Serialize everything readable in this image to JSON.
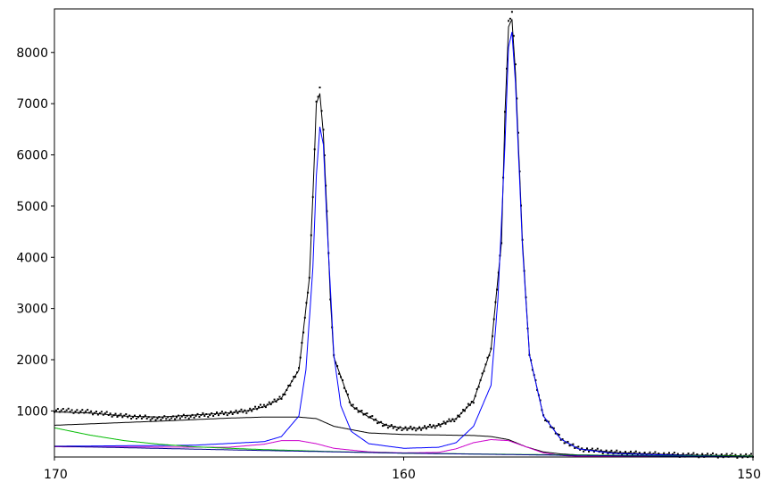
{
  "chart_data": {
    "type": "line",
    "title": "",
    "xlabel": "",
    "ylabel": "",
    "x_reversed": true,
    "xlim": [
      170,
      150
    ],
    "ylim": [
      100,
      8850
    ],
    "x_ticks": [
      170,
      160,
      150
    ],
    "x_tick_labels": [
      "170",
      "160",
      "150"
    ],
    "y_ticks": [
      1000,
      2000,
      3000,
      4000,
      5000,
      6000,
      7000,
      8000
    ],
    "y_tick_labels": [
      "1000",
      "2000",
      "3000",
      "4000",
      "5000",
      "6000",
      "7000",
      "8000"
    ],
    "grid": false,
    "legend": "none",
    "series": [
      {
        "kind": "points",
        "color": "#000000",
        "x": [
          170,
          169,
          168,
          167,
          166,
          165,
          164.5,
          164,
          163.5,
          163,
          162.7,
          162.6,
          162.5,
          162.4,
          162.3,
          162.2,
          162.1,
          162,
          161.5,
          161,
          160.5,
          160,
          159.5,
          159,
          158.5,
          158,
          157.5,
          157.2,
          157.1,
          157.0,
          156.9,
          156.8,
          156.6,
          156.4,
          156,
          155.5,
          155,
          154,
          153,
          152,
          151,
          150
        ],
        "y": [
          1020,
          980,
          900,
          850,
          900,
          960,
          1000,
          1100,
          1250,
          1800,
          3600,
          5200,
          7000,
          7300,
          6500,
          4900,
          3200,
          2050,
          1100,
          900,
          700,
          650,
          660,
          720,
          850,
          1200,
          2200,
          4300,
          6800,
          8600,
          8800,
          7800,
          4300,
          2100,
          900,
          450,
          260,
          190,
          160,
          140,
          130,
          120
        ]
      },
      {
        "kind": "line",
        "color": "#000000",
        "x": [
          170,
          169,
          168,
          167,
          166,
          165,
          164.5,
          164,
          163.5,
          163,
          162.7,
          162.6,
          162.5,
          162.4,
          162.3,
          162.2,
          162.1,
          162,
          161.5,
          161,
          160.5,
          160,
          159.5,
          159,
          158.5,
          158,
          157.5,
          157.2,
          157.1,
          157.0,
          156.9,
          156.8,
          156.6,
          156.4,
          156,
          155.5,
          155,
          154,
          153,
          152,
          151,
          150
        ],
        "y": [
          980,
          960,
          900,
          880,
          920,
          960,
          1000,
          1080,
          1250,
          1800,
          3600,
          5200,
          7000,
          7200,
          6400,
          4900,
          3200,
          2050,
          1100,
          880,
          720,
          660,
          660,
          720,
          850,
          1200,
          2200,
          4300,
          6800,
          8500,
          8650,
          7600,
          4300,
          2100,
          900,
          450,
          260,
          190,
          160,
          140,
          130,
          120
        ]
      },
      {
        "kind": "line",
        "color": "#000000",
        "x": [
          170,
          167,
          165,
          164,
          163,
          162.5,
          162,
          161,
          160,
          159,
          158.5,
          158,
          157.5,
          157,
          156.5,
          156,
          155.5,
          155,
          153,
          150
        ],
        "y": [
          720,
          800,
          860,
          880,
          880,
          850,
          700,
          570,
          540,
          530,
          525,
          520,
          500,
          440,
          300,
          200,
          160,
          140,
          125,
          115
        ]
      },
      {
        "kind": "line",
        "color": "#0000ff",
        "x": [
          170,
          166,
          164,
          163.5,
          163,
          162.8,
          162.6,
          162.5,
          162.4,
          162.3,
          162.2,
          162,
          161.8,
          161.5,
          161,
          160,
          159,
          158.5,
          158,
          157.5,
          157.3,
          157.1,
          157.0,
          156.9,
          156.8,
          156.6,
          156.4,
          156,
          155.5,
          155,
          154,
          152,
          150
        ],
        "y": [
          310,
          330,
          400,
          500,
          900,
          1800,
          3800,
          5600,
          6550,
          6200,
          4700,
          2100,
          1100,
          600,
          360,
          270,
          290,
          380,
          700,
          1500,
          3200,
          6200,
          8100,
          8400,
          7400,
          4200,
          2100,
          900,
          450,
          260,
          170,
          130,
          110
        ]
      },
      {
        "kind": "line",
        "color": "#cc00cc",
        "x": [
          170,
          165,
          164,
          163.5,
          163,
          162.5,
          162,
          161,
          160,
          159,
          158.5,
          158,
          157.5,
          157,
          156.5,
          156,
          155.5,
          155,
          150
        ],
        "y": [
          300,
          290,
          350,
          420,
          420,
          360,
          270,
          200,
          180,
          190,
          260,
          380,
          440,
          420,
          300,
          180,
          130,
          115,
          100
        ]
      },
      {
        "kind": "line",
        "color": "#00bb00",
        "x": [
          170,
          169,
          168,
          167,
          166,
          165,
          164,
          163,
          162,
          161,
          160,
          158,
          156,
          154,
          152,
          150
        ],
        "y": [
          670,
          530,
          420,
          350,
          300,
          270,
          245,
          225,
          205,
          190,
          175,
          160,
          145,
          132,
          122,
          115
        ]
      },
      {
        "kind": "line",
        "color": "#00008b",
        "x": [
          170,
          165,
          160,
          155,
          150
        ],
        "y": [
          310,
          240,
          175,
          130,
          105
        ]
      }
    ]
  }
}
